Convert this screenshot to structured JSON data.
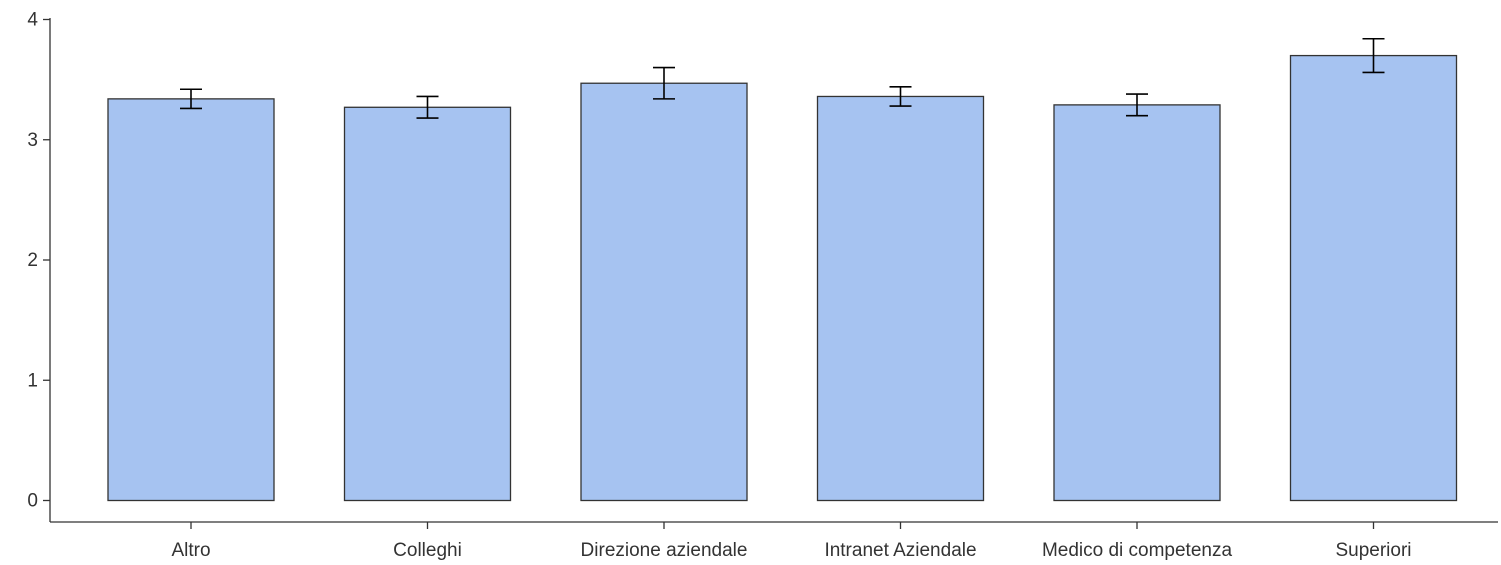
{
  "chart_data": {
    "type": "bar",
    "title": "",
    "xlabel": "",
    "ylabel": "",
    "categories": [
      "Altro",
      "Colleghi",
      "Direzione aziendale",
      "Intranet Aziendale",
      "Medico di competenza",
      "Superiori"
    ],
    "values": [
      3.34,
      3.27,
      3.47,
      3.36,
      3.29,
      3.7
    ],
    "error": [
      0.08,
      0.09,
      0.13,
      0.08,
      0.09,
      0.14
    ],
    "ylim": [
      0,
      4
    ],
    "yticks": [
      "0",
      "1",
      "2",
      "3",
      "4"
    ],
    "grid": false,
    "legend": "none",
    "bar_color": "#a6c3f1",
    "bar_edge_color": "#333333"
  }
}
